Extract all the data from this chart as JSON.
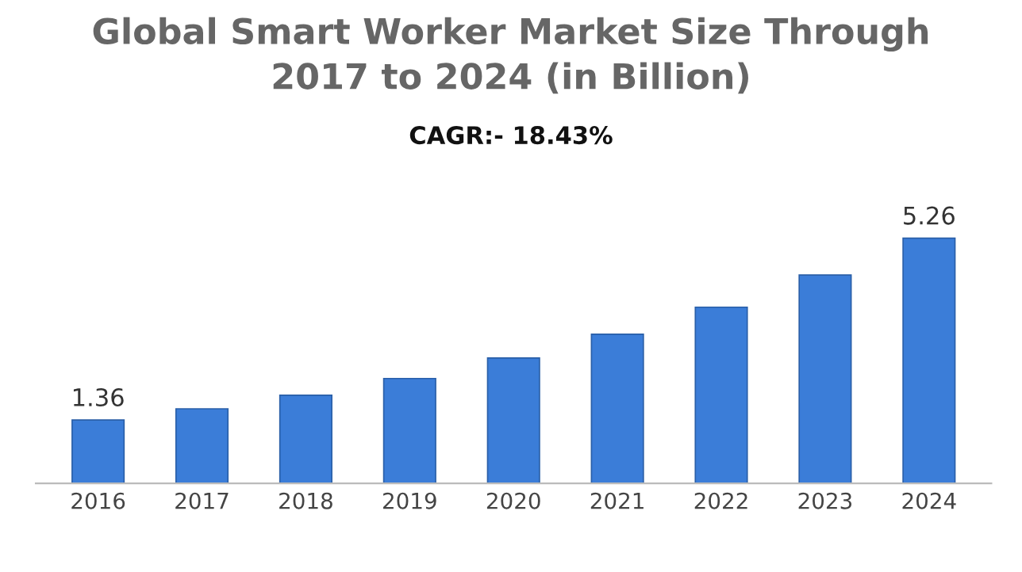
{
  "chart_data": {
    "type": "bar",
    "title": "Global Smart Worker Market Size Through\n2017 to 2024 (in Billion)",
    "annotations": [
      "CAGR:- 18.43%"
    ],
    "categories": [
      "2016",
      "2017",
      "2018",
      "2019",
      "2020",
      "2021",
      "2022",
      "2023",
      "2024"
    ],
    "values": [
      1.36,
      1.6,
      1.89,
      2.25,
      2.69,
      3.2,
      3.78,
      4.47,
      5.26
    ],
    "value_labels": [
      "1.36",
      null,
      null,
      null,
      null,
      null,
      null,
      null,
      "5.26"
    ],
    "color": "#3b7dd8",
    "grid": false,
    "legend": false
  }
}
